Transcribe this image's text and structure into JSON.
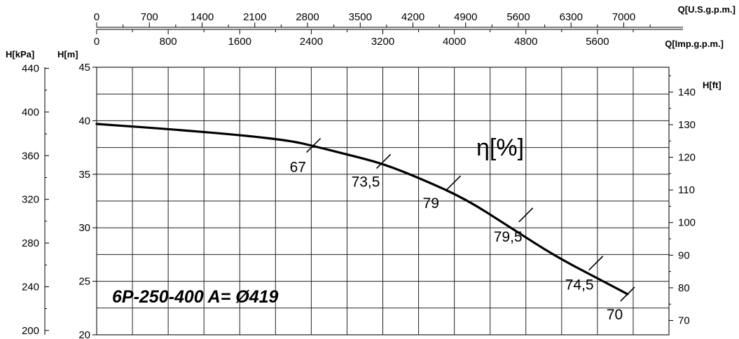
{
  "chart_data": {
    "type": "line",
    "title": "",
    "model_label": "6P-250-400 A= Ø419",
    "efficiency_label": "η[%]",
    "grid": true,
    "axes": {
      "bottom": {
        "label": "",
        "range": [
          0,
          8000
        ],
        "ticks": []
      },
      "top_usgpm": {
        "label": "Q[U.S.g.p.m.]",
        "range": [
          0,
          7600
        ],
        "ticks": [
          "0",
          "700",
          "1400",
          "2100",
          "2800",
          "3500",
          "4200",
          "4900",
          "5600",
          "6300",
          "7000"
        ]
      },
      "top_impgpm": {
        "label": "Q[Imp.g.p.m.]",
        "range": [
          0,
          6400
        ],
        "ticks": [
          "0",
          "800",
          "1600",
          "2400",
          "3200",
          "4000",
          "4800",
          "5600"
        ]
      },
      "left_m": {
        "label": "H[m]",
        "range": [
          20,
          45
        ],
        "ticks": [
          "20",
          "25",
          "30",
          "35",
          "40",
          "45"
        ]
      },
      "left_kpa": {
        "label": "H[kPa]",
        "range": [
          196,
          441
        ],
        "ticks": [
          "200",
          "240",
          "280",
          "320",
          "360",
          "400",
          "440"
        ]
      },
      "right_ft": {
        "label": "H[ft]",
        "range": [
          65.6,
          147.6
        ],
        "ticks": [
          "70",
          "80",
          "90",
          "100",
          "110",
          "120",
          "130",
          "140"
        ]
      }
    },
    "series": [
      {
        "x_usgpm": [
          0,
          1000,
          2000,
          2600,
          2900,
          3300,
          3800,
          4300,
          4900,
          5500,
          6100,
          6700,
          7050
        ],
        "y_m": [
          39.7,
          39.2,
          38.6,
          38.1,
          37.6,
          36.9,
          36.0,
          34.6,
          32.7,
          30.0,
          27.3,
          25.1,
          23.8
        ]
      }
    ],
    "efficiency_marks": [
      {
        "x_usgpm": 2880,
        "y_m": 37.7,
        "label": "67"
      },
      {
        "x_usgpm": 3810,
        "y_m": 36.2,
        "label": "73,5"
      },
      {
        "x_usgpm": 4740,
        "y_m": 34.2,
        "label": "79"
      },
      {
        "x_usgpm": 5700,
        "y_m": 31.2,
        "label": "79,5"
      },
      {
        "x_usgpm": 6630,
        "y_m": 26.7,
        "label": "74,5"
      },
      {
        "x_usgpm": 7050,
        "y_m": 23.8,
        "label": "70"
      }
    ]
  }
}
